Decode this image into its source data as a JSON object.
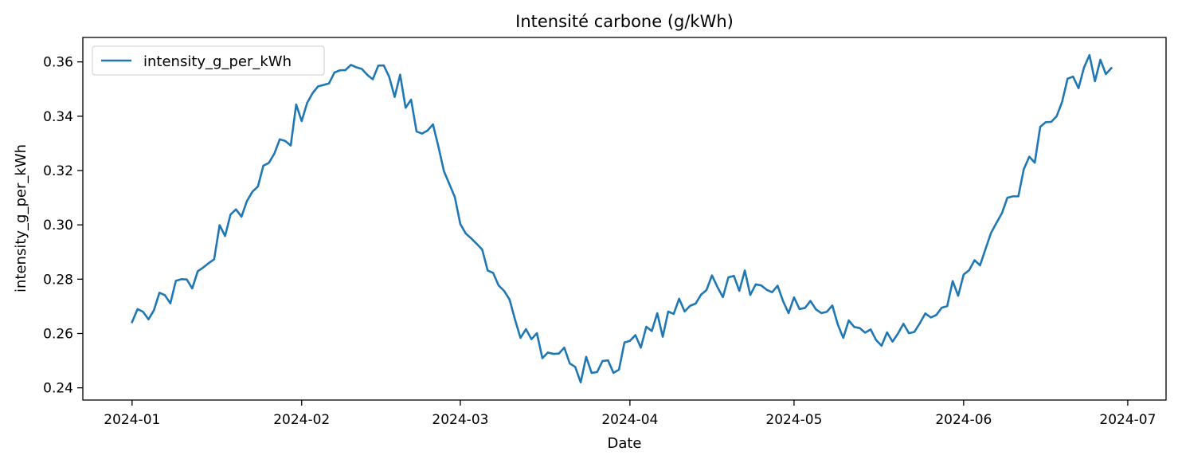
{
  "chart_data": {
    "type": "line",
    "title": "Intensité carbone (g/kWh)",
    "xlabel": "Date",
    "ylabel": "intensity_g_per_kWh",
    "x_ticks": [
      "2024-01",
      "2024-02",
      "2024-03",
      "2024-04",
      "2024-05",
      "2024-06",
      "2024-07"
    ],
    "y_ticks": [
      "0.24",
      "0.26",
      "0.28",
      "0.30",
      "0.32",
      "0.34",
      "0.36"
    ],
    "xlim": [
      "2023-12-23",
      "2024-07-08"
    ],
    "ylim": [
      0.2355,
      0.369
    ],
    "grid": false,
    "legend_position": "upper left",
    "series": [
      {
        "name": "intensity_g_per_kWh",
        "color": "#1f77b4",
        "x": [
          "2024-01-01",
          "2024-01-02",
          "2024-01-03",
          "2024-01-04",
          "2024-01-05",
          "2024-01-06",
          "2024-01-07",
          "2024-01-08",
          "2024-01-09",
          "2024-01-10",
          "2024-01-11",
          "2024-01-12",
          "2024-01-13",
          "2024-01-14",
          "2024-01-15",
          "2024-01-16",
          "2024-01-17",
          "2024-01-18",
          "2024-01-19",
          "2024-01-20",
          "2024-01-21",
          "2024-01-22",
          "2024-01-23",
          "2024-01-24",
          "2024-01-25",
          "2024-01-26",
          "2024-01-27",
          "2024-01-28",
          "2024-01-29",
          "2024-01-30",
          "2024-01-31",
          "2024-02-01",
          "2024-02-02",
          "2024-02-03",
          "2024-02-04",
          "2024-02-05",
          "2024-02-06",
          "2024-02-07",
          "2024-02-08",
          "2024-02-09",
          "2024-02-10",
          "2024-02-11",
          "2024-02-12",
          "2024-02-13",
          "2024-02-14",
          "2024-02-15",
          "2024-02-16",
          "2024-02-17",
          "2024-02-18",
          "2024-02-19",
          "2024-02-20",
          "2024-02-21",
          "2024-02-22",
          "2024-02-23",
          "2024-02-24",
          "2024-02-25",
          "2024-02-26",
          "2024-02-27",
          "2024-02-28",
          "2024-02-29",
          "2024-03-01",
          "2024-03-02",
          "2024-03-03",
          "2024-03-04",
          "2024-03-05",
          "2024-03-06",
          "2024-03-07",
          "2024-03-08",
          "2024-03-09",
          "2024-03-10",
          "2024-03-11",
          "2024-03-12",
          "2024-03-13",
          "2024-03-14",
          "2024-03-15",
          "2024-03-16",
          "2024-03-17",
          "2024-03-18",
          "2024-03-19",
          "2024-03-20",
          "2024-03-21",
          "2024-03-22",
          "2024-03-23",
          "2024-03-24",
          "2024-03-25",
          "2024-03-26",
          "2024-03-27",
          "2024-03-28",
          "2024-03-29",
          "2024-03-30",
          "2024-03-31",
          "2024-04-01",
          "2024-04-02",
          "2024-04-03",
          "2024-04-04",
          "2024-04-05",
          "2024-04-06",
          "2024-04-07",
          "2024-04-08",
          "2024-04-09",
          "2024-04-10",
          "2024-04-11",
          "2024-04-12",
          "2024-04-13",
          "2024-04-14",
          "2024-04-15",
          "2024-04-16",
          "2024-04-17",
          "2024-04-18",
          "2024-04-19",
          "2024-04-20",
          "2024-04-21",
          "2024-04-22",
          "2024-04-23",
          "2024-04-24",
          "2024-04-25",
          "2024-04-26",
          "2024-04-27",
          "2024-04-28",
          "2024-04-29",
          "2024-04-30",
          "2024-05-01",
          "2024-05-02",
          "2024-05-03",
          "2024-05-04",
          "2024-05-05",
          "2024-05-06",
          "2024-05-07",
          "2024-05-08",
          "2024-05-09",
          "2024-05-10",
          "2024-05-11",
          "2024-05-12",
          "2024-05-13",
          "2024-05-14",
          "2024-05-15",
          "2024-05-16",
          "2024-05-17",
          "2024-05-18",
          "2024-05-19",
          "2024-05-20",
          "2024-05-21",
          "2024-05-22",
          "2024-05-23",
          "2024-05-24",
          "2024-05-25",
          "2024-05-26",
          "2024-05-27",
          "2024-05-28",
          "2024-05-29",
          "2024-05-30",
          "2024-05-31",
          "2024-06-01",
          "2024-06-02",
          "2024-06-03",
          "2024-06-04",
          "2024-06-05",
          "2024-06-06",
          "2024-06-07",
          "2024-06-08",
          "2024-06-09",
          "2024-06-10",
          "2024-06-11",
          "2024-06-12",
          "2024-06-13",
          "2024-06-14",
          "2024-06-15",
          "2024-06-16",
          "2024-06-17",
          "2024-06-18",
          "2024-06-19",
          "2024-06-20",
          "2024-06-21",
          "2024-06-22",
          "2024-06-23",
          "2024-06-24",
          "2024-06-25",
          "2024-06-26",
          "2024-06-27",
          "2024-06-28"
        ],
        "values": [
          0.2642,
          0.269,
          0.268,
          0.2652,
          0.2686,
          0.275,
          0.2741,
          0.2711,
          0.2794,
          0.28,
          0.2799,
          0.2766,
          0.2829,
          0.2843,
          0.2859,
          0.2873,
          0.2999,
          0.2959,
          0.3038,
          0.3057,
          0.303,
          0.3088,
          0.3122,
          0.3141,
          0.3218,
          0.3228,
          0.3262,
          0.3315,
          0.3309,
          0.3292,
          0.3443,
          0.3382,
          0.3449,
          0.3485,
          0.351,
          0.3515,
          0.3521,
          0.3561,
          0.3569,
          0.357,
          0.3589,
          0.358,
          0.3574,
          0.3552,
          0.3536,
          0.3586,
          0.3587,
          0.3545,
          0.3471,
          0.3553,
          0.3431,
          0.3461,
          0.3344,
          0.3336,
          0.3347,
          0.337,
          0.3288,
          0.3198,
          0.315,
          0.3102,
          0.3003,
          0.2968,
          0.295,
          0.293,
          0.2909,
          0.2832,
          0.2823,
          0.2777,
          0.2757,
          0.2725,
          0.2651,
          0.2584,
          0.2616,
          0.2579,
          0.2601,
          0.2509,
          0.253,
          0.2525,
          0.2526,
          0.2548,
          0.249,
          0.2477,
          0.242,
          0.2514,
          0.2455,
          0.2458,
          0.2499,
          0.2501,
          0.2455,
          0.2467,
          0.2567,
          0.2573,
          0.2594,
          0.2548,
          0.2625,
          0.2609,
          0.2675,
          0.2588,
          0.2681,
          0.2672,
          0.2728,
          0.2681,
          0.2702,
          0.271,
          0.2743,
          0.276,
          0.2814,
          0.2771,
          0.2734,
          0.2807,
          0.2812,
          0.2757,
          0.2832,
          0.2742,
          0.2781,
          0.2777,
          0.2761,
          0.2752,
          0.2776,
          0.2719,
          0.2675,
          0.2733,
          0.269,
          0.2694,
          0.272,
          0.2689,
          0.2675,
          0.268,
          0.2703,
          0.2633,
          0.2584,
          0.2648,
          0.2624,
          0.262,
          0.2603,
          0.2615,
          0.2576,
          0.2555,
          0.2604,
          0.257,
          0.26,
          0.2636,
          0.2601,
          0.2606,
          0.2638,
          0.2674,
          0.2659,
          0.2668,
          0.2695,
          0.2701,
          0.2793,
          0.2739,
          0.2817,
          0.2833,
          0.287,
          0.2851,
          0.2911,
          0.297,
          0.3007,
          0.3043,
          0.31,
          0.3105,
          0.3105,
          0.3205,
          0.3251,
          0.3229,
          0.3361,
          0.3378,
          0.3379,
          0.34,
          0.3453,
          0.3538,
          0.3546,
          0.3503,
          0.3579,
          0.3625,
          0.3529,
          0.3608,
          0.3555,
          0.3577
        ]
      }
    ]
  }
}
